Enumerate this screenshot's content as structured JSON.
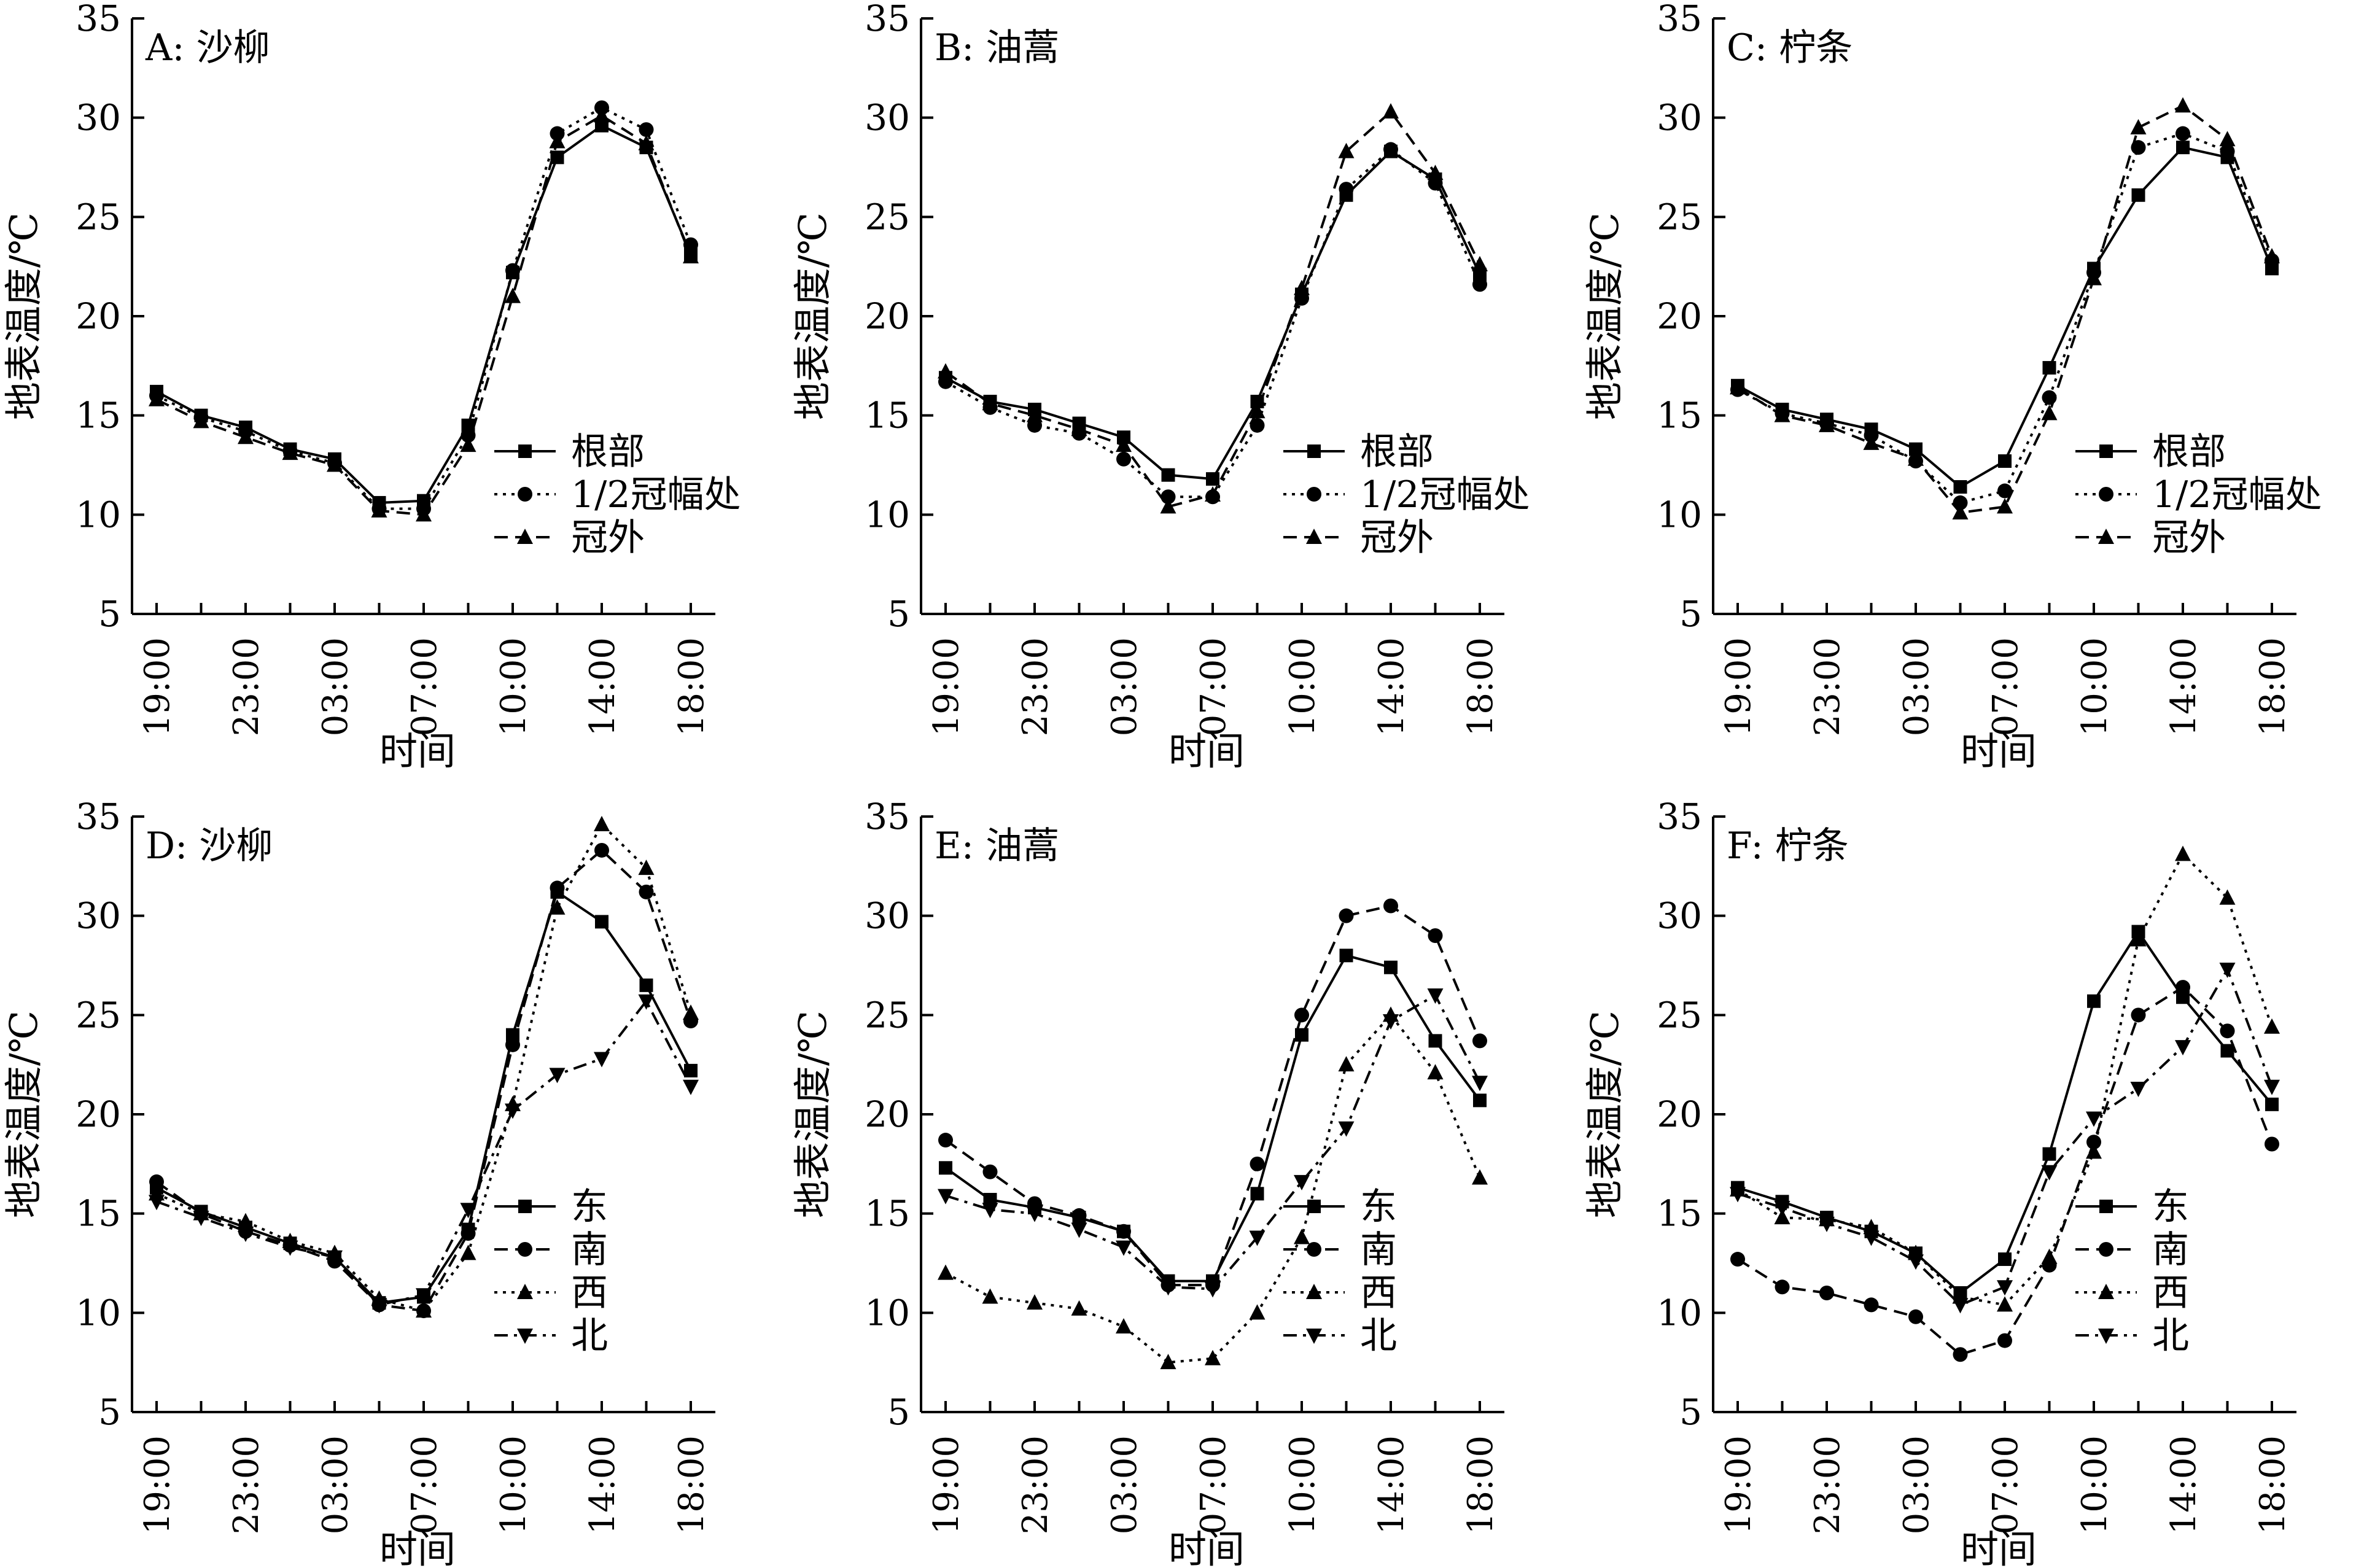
{
  "chart_data": [
    {
      "type": "line",
      "panel_label": "A: 沙柳",
      "xlabel": "时间",
      "ylabel": "地表温度/℃",
      "ylim": [
        5,
        35
      ],
      "yticks": [
        5,
        10,
        15,
        20,
        25,
        30,
        35
      ],
      "xtick_labels": [
        "19:00",
        "23:00",
        "03:00",
        "07:00",
        "10:00",
        "14:00",
        "18:00"
      ],
      "x": [
        0,
        2,
        4,
        6,
        8,
        10,
        12,
        14,
        16,
        18,
        20,
        22,
        24
      ],
      "legend_placement": "lower-right",
      "series": [
        {
          "name": "根部",
          "marker": "square",
          "dash": "solid",
          "values": [
            16.2,
            15.0,
            14.4,
            13.3,
            12.8,
            10.6,
            10.7,
            14.5,
            22.2,
            28.0,
            29.6,
            28.5,
            23.1
          ]
        },
        {
          "name": "1/2冠幅处",
          "marker": "circle",
          "dash": "dotted",
          "values": [
            16.0,
            14.9,
            14.2,
            13.2,
            12.6,
            10.3,
            10.3,
            14.0,
            22.3,
            29.2,
            30.5,
            29.4,
            23.6
          ]
        },
        {
          "name": "冠外",
          "marker": "triangle",
          "dash": "dashed",
          "values": [
            15.8,
            14.7,
            13.9,
            13.1,
            12.5,
            10.2,
            10.0,
            13.5,
            21.0,
            28.8,
            30.1,
            28.7,
            23.0
          ]
        }
      ]
    },
    {
      "type": "line",
      "panel_label": "B: 油蒿",
      "xlabel": "时间",
      "ylabel": "地表温度/℃",
      "ylim": [
        5,
        35
      ],
      "yticks": [
        5,
        10,
        15,
        20,
        25,
        30,
        35
      ],
      "xtick_labels": [
        "19:00",
        "23:00",
        "03:00",
        "07:00",
        "10:00",
        "14:00",
        "18:00"
      ],
      "x": [
        0,
        2,
        4,
        6,
        8,
        10,
        12,
        14,
        16,
        18,
        20,
        22,
        24
      ],
      "legend_placement": "lower-right",
      "series": [
        {
          "name": "根部",
          "marker": "square",
          "dash": "solid",
          "values": [
            16.9,
            15.7,
            15.3,
            14.6,
            13.9,
            12.0,
            11.8,
            15.7,
            21.1,
            26.1,
            28.3,
            26.9,
            22.1
          ]
        },
        {
          "name": "1/2冠幅处",
          "marker": "circle",
          "dash": "dotted",
          "values": [
            16.7,
            15.4,
            14.5,
            14.1,
            12.8,
            10.9,
            10.9,
            14.5,
            20.9,
            26.4,
            28.4,
            26.7,
            21.6
          ]
        },
        {
          "name": "冠外",
          "marker": "triangle",
          "dash": "dashed",
          "values": [
            17.2,
            15.6,
            15.0,
            14.3,
            13.5,
            10.4,
            11.0,
            15.2,
            21.4,
            28.3,
            30.3,
            27.2,
            22.6
          ]
        }
      ]
    },
    {
      "type": "line",
      "panel_label": "C: 柠条",
      "xlabel": "时间",
      "ylabel": "地表温度/℃",
      "ylim": [
        5,
        35
      ],
      "yticks": [
        5,
        10,
        15,
        20,
        25,
        30,
        35
      ],
      "xtick_labels": [
        "19:00",
        "23:00",
        "03:00",
        "07:00",
        "10:00",
        "14:00",
        "18:00"
      ],
      "x": [
        0,
        2,
        4,
        6,
        8,
        10,
        12,
        14,
        16,
        18,
        20,
        22,
        24
      ],
      "legend_placement": "lower-right",
      "series": [
        {
          "name": "根部",
          "marker": "square",
          "dash": "solid",
          "values": [
            16.5,
            15.3,
            14.8,
            14.3,
            13.3,
            11.4,
            12.7,
            17.4,
            22.4,
            26.1,
            28.5,
            28.0,
            22.4
          ]
        },
        {
          "name": "1/2冠幅处",
          "marker": "circle",
          "dash": "dotted",
          "values": [
            16.3,
            15.1,
            14.6,
            14.0,
            12.7,
            10.6,
            11.2,
            15.9,
            22.2,
            28.5,
            29.2,
            28.3,
            22.8
          ]
        },
        {
          "name": "冠外",
          "marker": "triangle",
          "dash": "dashed",
          "values": [
            16.4,
            15.0,
            14.5,
            13.6,
            12.8,
            10.1,
            10.4,
            15.1,
            21.9,
            29.5,
            30.6,
            28.9,
            23.0
          ]
        }
      ]
    },
    {
      "type": "line",
      "panel_label": "D: 沙柳",
      "xlabel": "时间",
      "ylabel": "地表温度/℃",
      "ylim": [
        5,
        35
      ],
      "yticks": [
        5,
        10,
        15,
        20,
        25,
        30,
        35
      ],
      "xtick_labels": [
        "19:00",
        "23:00",
        "03:00",
        "07:00",
        "10:00",
        "14:00",
        "18:00"
      ],
      "x": [
        0,
        2,
        4,
        6,
        8,
        10,
        12,
        14,
        16,
        18,
        20,
        22,
        24
      ],
      "legend_placement": "lower-right",
      "series": [
        {
          "name": "东",
          "marker": "square",
          "dash": "solid",
          "values": [
            16.3,
            15.1,
            14.3,
            13.5,
            12.8,
            10.5,
            10.8,
            14.2,
            24.0,
            31.2,
            29.7,
            26.5,
            22.2
          ]
        },
        {
          "name": "南",
          "marker": "circle",
          "dash": "dashed",
          "values": [
            16.6,
            15.0,
            14.1,
            13.4,
            12.6,
            10.4,
            10.1,
            14.0,
            23.5,
            31.4,
            33.3,
            31.2,
            24.7
          ]
        },
        {
          "name": "西",
          "marker": "triangle",
          "dash": "dotted",
          "values": [
            16.0,
            15.0,
            14.6,
            13.6,
            13.0,
            10.7,
            10.1,
            13.0,
            20.5,
            30.4,
            34.6,
            32.4,
            25.1
          ]
        },
        {
          "name": "北",
          "marker": "triangle-down",
          "dash": "dashdot",
          "values": [
            15.6,
            14.8,
            14.0,
            13.3,
            12.8,
            10.4,
            10.9,
            15.2,
            20.2,
            22.0,
            22.8,
            25.7,
            21.4
          ]
        }
      ]
    },
    {
      "type": "line",
      "panel_label": "E: 油蒿",
      "xlabel": "时间",
      "ylabel": "地表温度/℃",
      "ylim": [
        5,
        35
      ],
      "yticks": [
        5,
        10,
        15,
        20,
        25,
        30,
        35
      ],
      "xtick_labels": [
        "19:00",
        "23:00",
        "03:00",
        "07:00",
        "10:00",
        "14:00",
        "18:00"
      ],
      "x": [
        0,
        2,
        4,
        6,
        8,
        10,
        12,
        14,
        16,
        18,
        20,
        22,
        24
      ],
      "legend_placement": "lower-right",
      "series": [
        {
          "name": "东",
          "marker": "square",
          "dash": "solid",
          "values": [
            17.3,
            15.7,
            15.3,
            14.8,
            14.1,
            11.6,
            11.6,
            16.0,
            24.0,
            28.0,
            27.4,
            23.7,
            20.7
          ]
        },
        {
          "name": "南",
          "marker": "circle",
          "dash": "dashed",
          "values": [
            18.7,
            17.1,
            15.5,
            14.9,
            14.1,
            11.4,
            11.4,
            17.5,
            25.0,
            30.0,
            30.5,
            29.0,
            23.7
          ]
        },
        {
          "name": "西",
          "marker": "triangle",
          "dash": "dotted",
          "values": [
            12.0,
            10.8,
            10.5,
            10.2,
            9.3,
            7.5,
            7.7,
            10.0,
            13.8,
            22.5,
            25.0,
            22.1,
            16.8
          ]
        },
        {
          "name": "北",
          "marker": "triangle-down",
          "dash": "dashdot",
          "values": [
            15.9,
            15.2,
            15.0,
            14.2,
            13.3,
            11.3,
            11.2,
            13.8,
            16.6,
            19.3,
            24.7,
            26.0,
            21.6
          ]
        }
      ]
    },
    {
      "type": "line",
      "panel_label": "F: 柠条",
      "xlabel": "时间",
      "ylabel": "地表温度/℃",
      "ylim": [
        5,
        35
      ],
      "yticks": [
        5,
        10,
        15,
        20,
        25,
        30,
        35
      ],
      "xtick_labels": [
        "19:00",
        "23:00",
        "03:00",
        "07:00",
        "10:00",
        "14:00",
        "18:00"
      ],
      "x": [
        0,
        2,
        4,
        6,
        8,
        10,
        12,
        14,
        16,
        18,
        20,
        22,
        24
      ],
      "legend_placement": "lower-right",
      "series": [
        {
          "name": "东",
          "marker": "square",
          "dash": "solid",
          "values": [
            16.3,
            15.6,
            14.8,
            14.1,
            13.0,
            11.0,
            12.7,
            18.0,
            25.7,
            29.2,
            25.9,
            23.2,
            20.5
          ]
        },
        {
          "name": "南",
          "marker": "circle",
          "dash": "dashed",
          "values": [
            12.7,
            11.3,
            11.0,
            10.4,
            9.8,
            7.9,
            8.6,
            12.4,
            18.6,
            25.0,
            26.4,
            24.2,
            18.5
          ]
        },
        {
          "name": "西",
          "marker": "triangle",
          "dash": "dotted",
          "values": [
            16.2,
            14.8,
            14.7,
            14.3,
            13.0,
            10.8,
            10.4,
            12.8,
            18.1,
            28.8,
            33.1,
            30.9,
            24.4
          ]
        },
        {
          "name": "北",
          "marker": "triangle-down",
          "dash": "dashdot",
          "values": [
            16.0,
            15.3,
            14.5,
            13.8,
            12.6,
            10.4,
            11.3,
            17.1,
            19.8,
            21.3,
            23.4,
            27.3,
            21.4
          ]
        }
      ]
    }
  ]
}
